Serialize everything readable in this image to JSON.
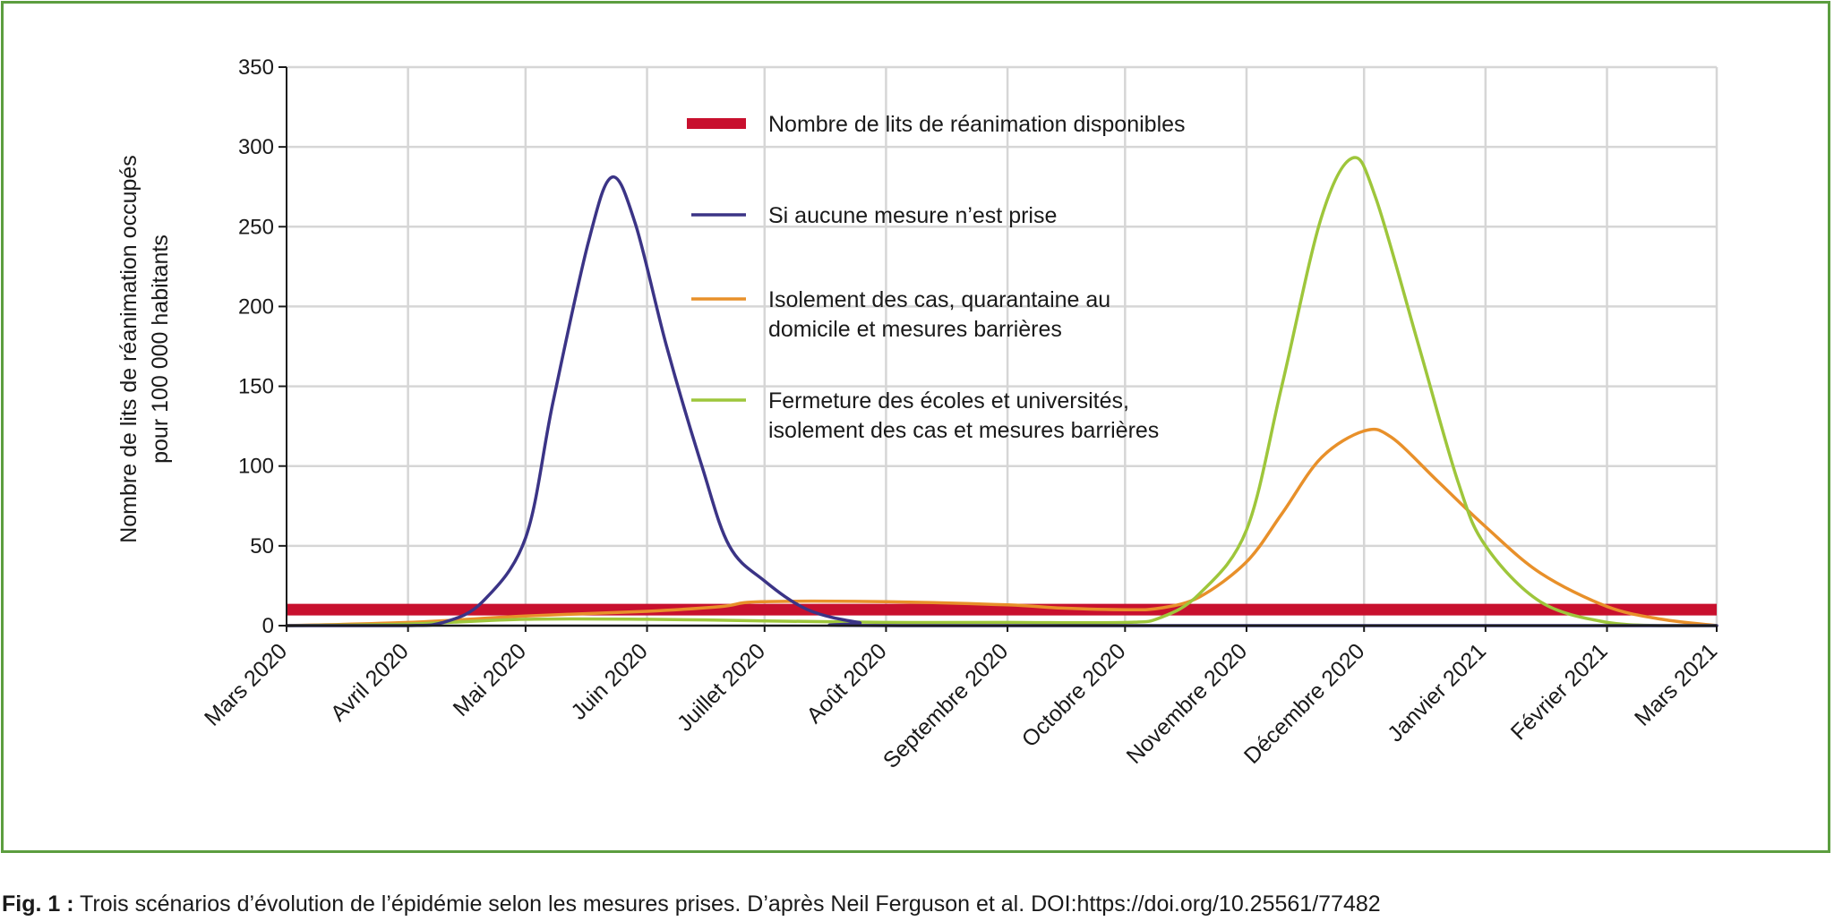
{
  "chart_data": {
    "type": "line",
    "ylabel": "Nombre de lits de réanimation occupés pour 100 000 habitants",
    "ylabel_lines": [
      "Nombre de lits de réanimation occupés",
      "pour 100 000 habitants"
    ],
    "ylim": [
      0,
      350
    ],
    "yticks": [
      0,
      50,
      100,
      150,
      200,
      250,
      300,
      350
    ],
    "xlim": [
      "2020-03-01",
      "2021-03-01"
    ],
    "x_tick_labels": [
      "Mars 2020",
      "Avril 2020",
      "Mai 2020",
      "Juin 2020",
      "Juillet 2020",
      "Août 2020",
      "Septembre 2020",
      "Octobre 2020",
      "Novembre 2020",
      "Décembre 2020",
      "Janvier 2021",
      "Février 2021",
      "Mars 2021"
    ],
    "grid": true,
    "legend_position": "top-center",
    "series": [
      {
        "name": "Nombre de lits de réanimation disponibles",
        "legend_lines": [
          "Nombre de lits de réanimation disponibles"
        ],
        "color": "#c8102e",
        "style": "thick-band",
        "points": [
          [
            "2020-03-01",
            10
          ],
          [
            "2021-03-01",
            10
          ]
        ]
      },
      {
        "name": "Si aucune mesure n’est prise",
        "legend_lines": [
          "Si aucune mesure n’est prise"
        ],
        "color": "#3b3486",
        "points": [
          [
            "2020-03-01",
            0
          ],
          [
            "2020-04-01",
            0
          ],
          [
            "2020-04-10",
            2
          ],
          [
            "2020-04-20",
            15
          ],
          [
            "2020-05-01",
            55
          ],
          [
            "2020-05-08",
            140
          ],
          [
            "2020-05-17",
            240
          ],
          [
            "2020-05-23",
            281
          ],
          [
            "2020-05-29",
            252
          ],
          [
            "2020-06-06",
            175
          ],
          [
            "2020-06-15",
            100
          ],
          [
            "2020-06-22",
            50
          ],
          [
            "2020-07-01",
            28
          ],
          [
            "2020-07-12",
            10
          ],
          [
            "2020-07-25",
            2
          ],
          [
            "2020-08-05",
            0
          ],
          [
            "2021-03-01",
            0
          ]
        ]
      },
      {
        "name": "Isolement des cas, quarantaine au domicile et mesures barrières",
        "legend_lines": [
          "Isolement des cas, quarantaine au",
          "domicile et mesures barrières"
        ],
        "color": "#e8902a",
        "points": [
          [
            "2020-03-01",
            0
          ],
          [
            "2020-04-01",
            2
          ],
          [
            "2020-05-01",
            6
          ],
          [
            "2020-06-01",
            9
          ],
          [
            "2020-06-20",
            12
          ],
          [
            "2020-06-30",
            15
          ],
          [
            "2020-08-01",
            15
          ],
          [
            "2020-09-01",
            13
          ],
          [
            "2020-09-15",
            11
          ],
          [
            "2020-10-01",
            10
          ],
          [
            "2020-10-10",
            11
          ],
          [
            "2020-10-20",
            18
          ],
          [
            "2020-11-01",
            40
          ],
          [
            "2020-11-10",
            70
          ],
          [
            "2020-11-20",
            105
          ],
          [
            "2020-12-01",
            122
          ],
          [
            "2020-12-08",
            118
          ],
          [
            "2020-12-20",
            90
          ],
          [
            "2021-01-01",
            62
          ],
          [
            "2021-01-15",
            33
          ],
          [
            "2021-02-01",
            12
          ],
          [
            "2021-02-15",
            4
          ],
          [
            "2021-03-01",
            0
          ]
        ]
      },
      {
        "name": "Fermeture des écoles et universités, isolement des cas et mesures barrières",
        "legend_lines": [
          "Fermeture des écoles et universités,",
          "isolement des cas et mesures barrières"
        ],
        "color": "#9ec63b",
        "points": [
          [
            "2020-03-01",
            0
          ],
          [
            "2020-04-01",
            1
          ],
          [
            "2020-05-01",
            4
          ],
          [
            "2020-06-01",
            4
          ],
          [
            "2020-07-01",
            3
          ],
          [
            "2020-08-01",
            2
          ],
          [
            "2020-09-01",
            2
          ],
          [
            "2020-10-01",
            2
          ],
          [
            "2020-10-10",
            5
          ],
          [
            "2020-10-20",
            20
          ],
          [
            "2020-11-01",
            60
          ],
          [
            "2020-11-10",
            150
          ],
          [
            "2020-11-20",
            255
          ],
          [
            "2020-11-28",
            293
          ],
          [
            "2020-12-04",
            268
          ],
          [
            "2020-12-15",
            175
          ],
          [
            "2020-12-25",
            90
          ],
          [
            "2021-01-01",
            50
          ],
          [
            "2021-01-15",
            15
          ],
          [
            "2021-02-01",
            2
          ],
          [
            "2021-02-15",
            0
          ],
          [
            "2021-03-01",
            0
          ]
        ]
      }
    ]
  },
  "caption": {
    "label": "Fig. 1 :",
    "text": " Trois scénarios d’évolution de l’épidémie selon les mesures prises. D’après Neil Ferguson et al. DOI:https://doi.org/10.25561/77482"
  }
}
